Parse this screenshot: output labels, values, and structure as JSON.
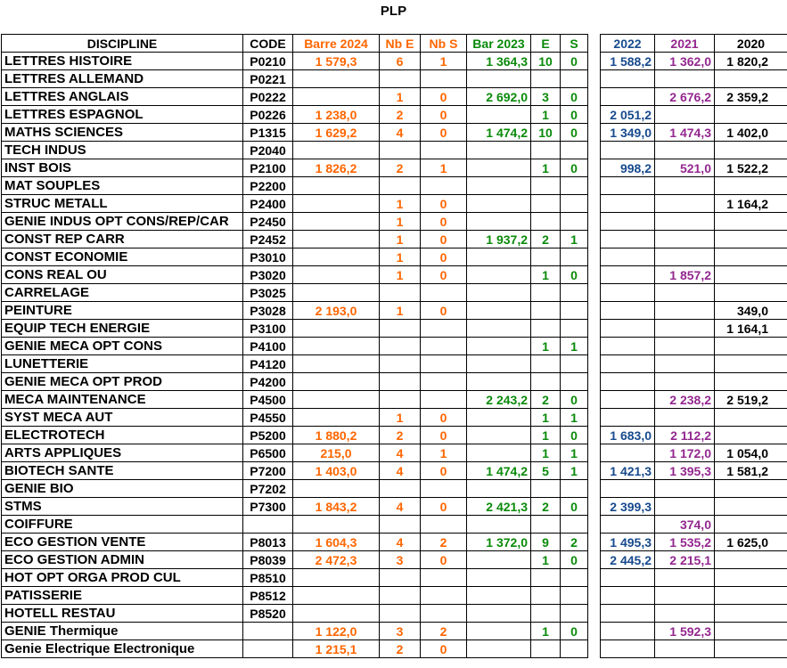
{
  "title": "PLP",
  "colors": {
    "current_year_accent": "#FF6600",
    "previous_year_accent": "#0A8A0A",
    "year_2022": "#174A8D",
    "year_2021": "#93278F",
    "year_2020": "#000000",
    "grid_border": "#000000",
    "background": "#ffffff"
  },
  "headers": {
    "discipline": "DISCIPLINE",
    "code": "CODE",
    "barre2024": "Barre 2024",
    "nbE": "Nb E",
    "nbS": "Nb S",
    "bar2023": "Bar 2023",
    "e": "E",
    "s": "S",
    "y2022": "2022",
    "y2021": "2021",
    "y2020": "2020"
  },
  "rows": [
    [
      "LETTRES HISTOIRE",
      "P0210",
      "1 579,3",
      "6",
      "1",
      "1 364,3",
      "10",
      "0",
      "1 588,2",
      "1 362,0",
      "1 820,2"
    ],
    [
      "LETTRES ALLEMAND",
      "P0221",
      "",
      "",
      "",
      "",
      "",
      "",
      "",
      "",
      ""
    ],
    [
      "LETTRES ANGLAIS",
      "P0222",
      "",
      "1",
      "0",
      "2 692,0",
      "3",
      "0",
      "",
      "2 676,2",
      "2 359,2"
    ],
    [
      "LETTRES ESPAGNOL",
      "P0226",
      "1 238,0",
      "2",
      "0",
      "",
      "1",
      "0",
      "2 051,2",
      "",
      ""
    ],
    [
      "MATHS SCIENCES",
      "P1315",
      "1 629,2",
      "4",
      "0",
      "1 474,2",
      "10",
      "0",
      "1 349,0",
      "1 474,3",
      "1 402,0"
    ],
    [
      "TECH INDUS",
      "P2040",
      "",
      "",
      "",
      "",
      "",
      "",
      "",
      "",
      ""
    ],
    [
      "INST BOIS",
      "P2100",
      "1 826,2",
      "2",
      "1",
      "",
      "1",
      "0",
      "998,2",
      "521,0",
      "1 522,2"
    ],
    [
      "MAT SOUPLES",
      "P2200",
      "",
      "",
      "",
      "",
      "",
      "",
      "",
      "",
      ""
    ],
    [
      "STRUC METALL",
      "P2400",
      "",
      "1",
      "0",
      "",
      "",
      "",
      "",
      "",
      "1 164,2"
    ],
    [
      "GENIE INDUS OPT CONS/REP/CAR",
      "P2450",
      "",
      "1",
      "0",
      "",
      "",
      "",
      "",
      "",
      ""
    ],
    [
      "CONST REP CARR",
      "P2452",
      "",
      "1",
      "0",
      "1 937,2",
      "2",
      "1",
      "",
      "",
      ""
    ],
    [
      "CONST ECONOMIE",
      "P3010",
      "",
      "1",
      "0",
      "",
      "",
      "",
      "",
      "",
      ""
    ],
    [
      "CONS REAL OU",
      "P3020",
      "",
      "1",
      "0",
      "",
      "1",
      "0",
      "",
      "1 857,2",
      ""
    ],
    [
      "CARRELAGE",
      "P3025",
      "",
      "",
      "",
      "",
      "",
      "",
      "",
      "",
      ""
    ],
    [
      "PEINTURE",
      "P3028",
      "2 193,0",
      "1",
      "0",
      "",
      "",
      "",
      "",
      "",
      "349,0"
    ],
    [
      "EQUIP TECH ENERGIE",
      "P3100",
      "",
      "",
      "",
      "",
      "",
      "",
      "",
      "",
      "1 164,1"
    ],
    [
      "GENIE MECA OPT CONS",
      "P4100",
      "",
      "",
      "",
      "",
      "1",
      "1",
      "",
      "",
      ""
    ],
    [
      "LUNETTERIE",
      "P4120",
      "",
      "",
      "",
      "",
      "",
      "",
      "",
      "",
      ""
    ],
    [
      "GENIE MECA OPT PROD",
      "P4200",
      "",
      "",
      "",
      "",
      "",
      "",
      "",
      "",
      ""
    ],
    [
      "MECA MAINTENANCE",
      "P4500",
      "",
      "",
      "",
      "2 243,2",
      "2",
      "0",
      "",
      "2 238,2",
      "2 519,2"
    ],
    [
      "SYST MECA AUT",
      "P4550",
      "",
      "1",
      "0",
      "",
      "1",
      "1",
      "",
      "",
      ""
    ],
    [
      "ELECTROTECH",
      "P5200",
      "1 880,2",
      "2",
      "0",
      "",
      "1",
      "0",
      "1 683,0",
      "2 112,2",
      ""
    ],
    [
      "ARTS APPLIQUES",
      "P6500",
      "215,0",
      "4",
      "1",
      "",
      "1",
      "1",
      "",
      "1 172,0",
      "1 054,0"
    ],
    [
      "BIOTECH SANTE",
      "P7200",
      "1 403,0",
      "4",
      "0",
      "1 474,2",
      "5",
      "1",
      "1 421,3",
      "1 395,3",
      "1 581,2"
    ],
    [
      "GENIE BIO",
      "P7202",
      "",
      "",
      "",
      "",
      "",
      "",
      "",
      "",
      ""
    ],
    [
      "STMS",
      "P7300",
      "1 843,2",
      "4",
      "0",
      "2 421,3",
      "2",
      "0",
      "2 399,3",
      "",
      ""
    ],
    [
      "COIFFURE",
      "",
      "",
      "",
      "",
      "",
      "",
      "",
      "",
      "374,0",
      ""
    ],
    [
      "ECO GESTION VENTE",
      "P8013",
      "1 604,3",
      "4",
      "2",
      "1 372,0",
      "9",
      "2",
      "1 495,3",
      "1 535,2",
      "1 625,0"
    ],
    [
      "ECO GESTION ADMIN",
      "P8039",
      "2 472,3",
      "3",
      "0",
      "",
      "1",
      "0",
      "2 445,2",
      "2 215,1",
      ""
    ],
    [
      "HOT OPT ORGA PROD CUL",
      "P8510",
      "",
      "",
      "",
      "",
      "",
      "",
      "",
      "",
      ""
    ],
    [
      "PATISSERIE",
      "P8512",
      "",
      "",
      "",
      "",
      "",
      "",
      "",
      "",
      ""
    ],
    [
      "HOTELL RESTAU",
      "P8520",
      "",
      "",
      "",
      "",
      "",
      "",
      "",
      "",
      ""
    ],
    [
      "GENIE Thermique",
      "",
      "1 122,0",
      "3",
      "2",
      "",
      "1",
      "0",
      "",
      "1 592,3",
      ""
    ],
    [
      "Genie Electrique Electronique",
      "",
      "1 215,1",
      "2",
      "0",
      "",
      "",
      "",
      "",
      "",
      ""
    ]
  ]
}
